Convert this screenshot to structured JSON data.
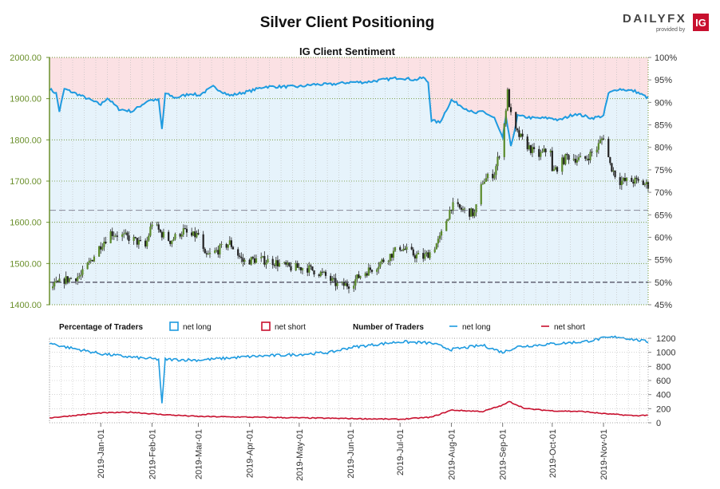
{
  "header": {
    "title": "Silver Client Positioning",
    "brand": "DAILYFX",
    "brand_sub": "provided by",
    "brand_badge": "IG"
  },
  "colors": {
    "net_long": "#1e9be0",
    "net_short": "#c8102e",
    "long_fill": "#e6f3fb",
    "short_fill": "#fbe1e4",
    "candle": "#222222",
    "axis_green": "#6a8f2a",
    "grid": "#bbbbbb"
  },
  "chart_data": [
    {
      "type": "candlestick",
      "title": "IG Client Sentiment",
      "y_left": {
        "label": "",
        "ticks": [
          "1400.00",
          "1500.00",
          "1600.00",
          "1700.00",
          "1800.00",
          "1900.00",
          "2000.00"
        ],
        "range": [
          1400,
          2000
        ]
      },
      "y_right": {
        "label": "",
        "ticks": [
          "45%",
          "50%",
          "55%",
          "60%",
          "65%",
          "70%",
          "75%",
          "80%",
          "85%",
          "90%",
          "95%",
          "100%"
        ],
        "range": [
          45,
          100
        ]
      },
      "x_ticks": [
        "2019-Jan-01",
        "2019-Feb-01",
        "2019-Mar-01",
        "2019-Apr-01",
        "2019-May-01",
        "2019-Jun-01",
        "2019-Jul-01",
        "2019-Aug-01",
        "2019-Sep-01",
        "2019-Oct-01",
        "2019-Nov-01"
      ],
      "reference_lines_pct": [
        50,
        66
      ],
      "price_keypoints": [
        [
          "2018-12-01",
          1440
        ],
        [
          "2018-12-10",
          1460
        ],
        [
          "2018-12-20",
          1470
        ],
        [
          "2019-01-01",
          1545
        ],
        [
          "2019-01-07",
          1575
        ],
        [
          "2019-01-20",
          1560
        ],
        [
          "2019-01-28",
          1540
        ],
        [
          "2019-02-01",
          1600
        ],
        [
          "2019-02-06",
          1575
        ],
        [
          "2019-02-12",
          1555
        ],
        [
          "2019-02-20",
          1580
        ],
        [
          "2019-02-24",
          1565
        ],
        [
          "2019-03-01",
          1570
        ],
        [
          "2019-03-05",
          1515
        ],
        [
          "2019-03-12",
          1530
        ],
        [
          "2019-03-20",
          1550
        ],
        [
          "2019-03-28",
          1505
        ],
        [
          "2019-04-05",
          1510
        ],
        [
          "2019-04-15",
          1505
        ],
        [
          "2019-04-25",
          1490
        ],
        [
          "2019-05-05",
          1490
        ],
        [
          "2019-05-15",
          1475
        ],
        [
          "2019-05-25",
          1445
        ],
        [
          "2019-06-01",
          1450
        ],
        [
          "2019-06-08",
          1475
        ],
        [
          "2019-06-15",
          1490
        ],
        [
          "2019-06-25",
          1520
        ],
        [
          "2019-07-01",
          1540
        ],
        [
          "2019-07-10",
          1520
        ],
        [
          "2019-07-15",
          1515
        ],
        [
          "2019-07-20",
          1530
        ],
        [
          "2019-07-25",
          1560
        ],
        [
          "2019-08-01",
          1640
        ],
        [
          "2019-08-08",
          1630
        ],
        [
          "2019-08-15",
          1620
        ],
        [
          "2019-08-20",
          1700
        ],
        [
          "2019-08-27",
          1720
        ],
        [
          "2019-09-01",
          1800
        ],
        [
          "2019-09-04",
          1915
        ],
        [
          "2019-09-07",
          1830
        ],
        [
          "2019-09-15",
          1790
        ],
        [
          "2019-09-22",
          1760
        ],
        [
          "2019-09-30",
          1780
        ],
        [
          "2019-10-01",
          1720
        ],
        [
          "2019-10-10",
          1760
        ],
        [
          "2019-10-20",
          1750
        ],
        [
          "2019-10-28",
          1780
        ],
        [
          "2019-11-01",
          1810
        ],
        [
          "2019-11-05",
          1740
        ],
        [
          "2019-11-10",
          1700
        ],
        [
          "2019-11-20",
          1700
        ],
        [
          "2019-11-28",
          1690
        ]
      ],
      "net_long_pct_keypoints": [
        [
          "2018-12-01",
          93
        ],
        [
          "2018-12-05",
          92
        ],
        [
          "2018-12-07",
          88
        ],
        [
          "2018-12-10",
          93
        ],
        [
          "2018-12-20",
          91.5
        ],
        [
          "2019-01-01",
          89.5
        ],
        [
          "2019-01-05",
          91
        ],
        [
          "2019-01-12",
          88.5
        ],
        [
          "2019-01-20",
          88
        ],
        [
          "2019-01-24",
          89
        ],
        [
          "2019-01-30",
          90.5
        ],
        [
          "2019-02-05",
          90.5
        ],
        [
          "2019-02-07",
          84
        ],
        [
          "2019-02-09",
          92
        ],
        [
          "2019-02-15",
          91
        ],
        [
          "2019-02-25",
          92
        ],
        [
          "2019-03-01",
          91.5
        ],
        [
          "2019-03-10",
          93.5
        ],
        [
          "2019-03-20",
          91.5
        ],
        [
          "2019-04-01",
          92.5
        ],
        [
          "2019-04-10",
          93.5
        ],
        [
          "2019-04-20",
          93.5
        ],
        [
          "2019-05-01",
          93.5
        ],
        [
          "2019-05-10",
          94
        ],
        [
          "2019-05-20",
          94
        ],
        [
          "2019-06-01",
          94.5
        ],
        [
          "2019-06-10",
          94.5
        ],
        [
          "2019-06-20",
          95
        ],
        [
          "2019-07-01",
          95.5
        ],
        [
          "2019-07-10",
          95
        ],
        [
          "2019-07-15",
          95.5
        ],
        [
          "2019-07-18",
          94.5
        ],
        [
          "2019-07-20",
          86
        ],
        [
          "2019-07-25",
          85.5
        ],
        [
          "2019-08-01",
          90.5
        ],
        [
          "2019-08-08",
          89
        ],
        [
          "2019-08-15",
          87.5
        ],
        [
          "2019-08-20",
          88
        ],
        [
          "2019-08-27",
          86.5
        ],
        [
          "2019-09-01",
          82
        ],
        [
          "2019-09-03",
          87
        ],
        [
          "2019-09-06",
          80
        ],
        [
          "2019-09-10",
          87
        ],
        [
          "2019-09-20",
          86.5
        ],
        [
          "2019-10-01",
          86.5
        ],
        [
          "2019-10-05",
          86
        ],
        [
          "2019-10-15",
          87.5
        ],
        [
          "2019-10-25",
          86.5
        ],
        [
          "2019-11-01",
          87
        ],
        [
          "2019-11-04",
          92
        ],
        [
          "2019-11-10",
          93
        ],
        [
          "2019-11-20",
          92.5
        ],
        [
          "2019-11-28",
          91
        ]
      ]
    },
    {
      "type": "line",
      "title": "",
      "legend": {
        "pct_label": "Percentage of Traders",
        "num_label": "Number of Traders",
        "long": "net long",
        "short": "net short"
      },
      "y_right": {
        "label": "",
        "ticks": [
          "0",
          "200",
          "400",
          "600",
          "800",
          "1000",
          "1200"
        ],
        "range": [
          0,
          1200
        ]
      },
      "x_ticks": [
        "2019-Jan-01",
        "2019-Feb-01",
        "2019-Mar-01",
        "2019-Apr-01",
        "2019-May-01",
        "2019-Jun-01",
        "2019-Jul-01",
        "2019-Aug-01",
        "2019-Sep-01",
        "2019-Oct-01",
        "2019-Nov-01"
      ],
      "series": [
        {
          "name": "net long",
          "keypoints": [
            [
              "2018-12-01",
              1130
            ],
            [
              "2018-12-10",
              1080
            ],
            [
              "2019-01-01",
              980
            ],
            [
              "2019-01-20",
              930
            ],
            [
              "2019-02-05",
              900
            ],
            [
              "2019-02-07",
              260
            ],
            [
              "2019-02-09",
              900
            ],
            [
              "2019-03-01",
              890
            ],
            [
              "2019-04-01",
              940
            ],
            [
              "2019-05-01",
              970
            ],
            [
              "2019-05-20",
              1000
            ],
            [
              "2019-06-01",
              1070
            ],
            [
              "2019-07-01",
              1150
            ],
            [
              "2019-07-20",
              1130
            ],
            [
              "2019-08-01",
              1040
            ],
            [
              "2019-08-20",
              1100
            ],
            [
              "2019-09-01",
              1000
            ],
            [
              "2019-09-10",
              1080
            ],
            [
              "2019-10-01",
              1120
            ],
            [
              "2019-10-20",
              1150
            ],
            [
              "2019-11-01",
              1200
            ],
            [
              "2019-11-10",
              1220
            ],
            [
              "2019-11-20",
              1180
            ],
            [
              "2019-11-28",
              1150
            ]
          ]
        },
        {
          "name": "net short",
          "keypoints": [
            [
              "2018-12-01",
              70
            ],
            [
              "2018-12-10",
              90
            ],
            [
              "2019-01-01",
              140
            ],
            [
              "2019-01-20",
              150
            ],
            [
              "2019-02-05",
              120
            ],
            [
              "2019-03-01",
              90
            ],
            [
              "2019-04-01",
              80
            ],
            [
              "2019-05-01",
              70
            ],
            [
              "2019-06-01",
              60
            ],
            [
              "2019-07-01",
              50
            ],
            [
              "2019-07-20",
              80
            ],
            [
              "2019-08-01",
              180
            ],
            [
              "2019-08-20",
              160
            ],
            [
              "2019-09-01",
              250
            ],
            [
              "2019-09-05",
              300
            ],
            [
              "2019-09-15",
              200
            ],
            [
              "2019-10-01",
              170
            ],
            [
              "2019-10-20",
              160
            ],
            [
              "2019-11-01",
              130
            ],
            [
              "2019-11-20",
              100
            ],
            [
              "2019-11-28",
              110
            ]
          ]
        }
      ]
    }
  ]
}
